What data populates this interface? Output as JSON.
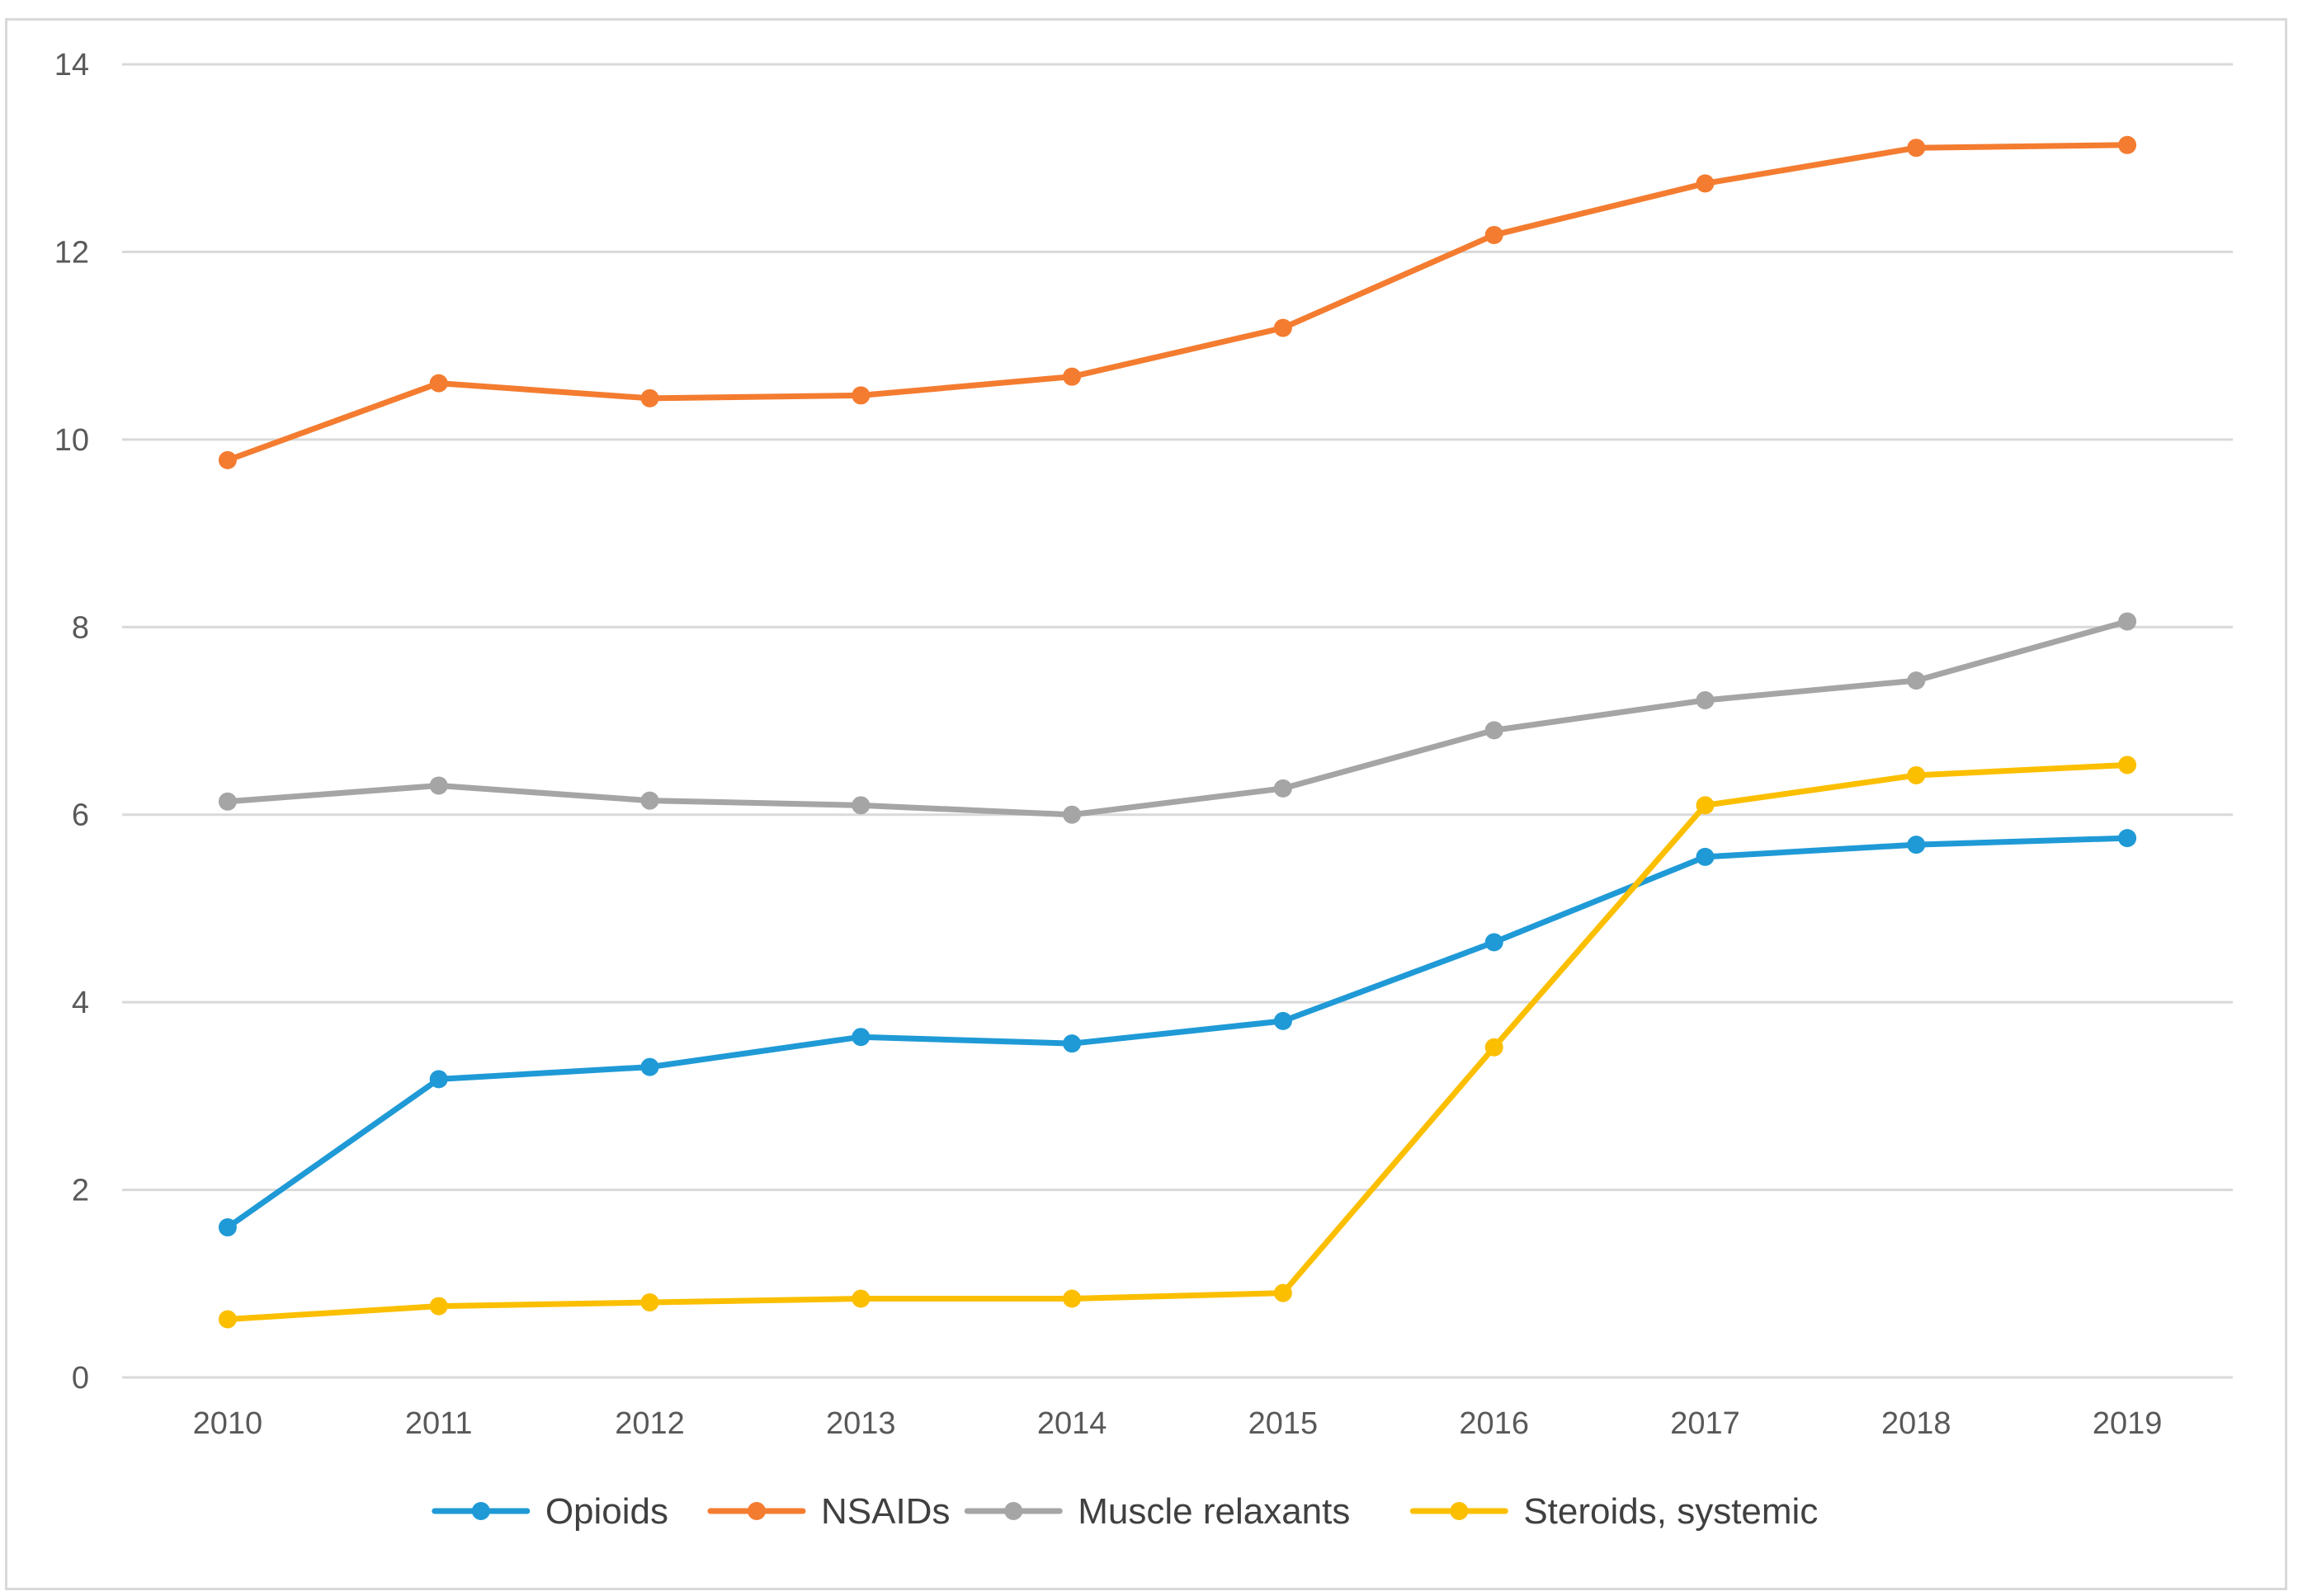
{
  "chart_data": {
    "type": "line",
    "title": "",
    "xlabel": "",
    "ylabel": "",
    "categories": [
      "2010",
      "2011",
      "2012",
      "2013",
      "2014",
      "2015",
      "2016",
      "2017",
      "2018",
      "2019"
    ],
    "ylim": [
      0,
      14
    ],
    "yticks": [
      0,
      2,
      4,
      6,
      8,
      10,
      12,
      14
    ],
    "grid": "horizontal",
    "legend": "bottom",
    "series": [
      {
        "name": "Opioids",
        "color": "#1f9ad6",
        "values": [
          1.6,
          3.18,
          3.31,
          3.63,
          3.56,
          3.8,
          4.64,
          5.55,
          5.68,
          5.75
        ]
      },
      {
        "name": "NSAIDs",
        "color": "#f47c30",
        "values": [
          9.78,
          10.6,
          10.44,
          10.47,
          10.67,
          11.19,
          12.18,
          12.73,
          13.11,
          13.14
        ]
      },
      {
        "name": "Muscle relaxants",
        "color": "#a5a5a5",
        "values": [
          6.14,
          6.31,
          6.15,
          6.1,
          6.0,
          6.28,
          6.9,
          7.22,
          7.43,
          8.06
        ]
      },
      {
        "name": "Steroids, systemic",
        "color": "#fbbf00",
        "values": [
          0.62,
          0.76,
          0.8,
          0.84,
          0.84,
          0.9,
          3.52,
          6.1,
          6.42,
          6.53
        ]
      }
    ]
  }
}
